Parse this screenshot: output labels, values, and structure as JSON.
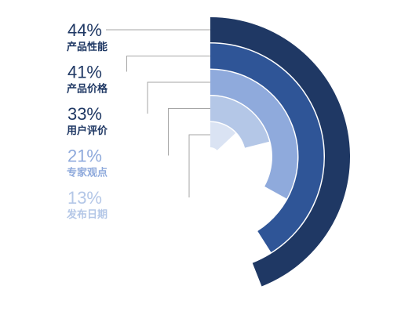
{
  "chart_data": {
    "type": "radial_bar",
    "categories": [
      "产品性能",
      "产品价格",
      "用户评价",
      "专家观点",
      "发布日期"
    ],
    "values": [
      44,
      41,
      33,
      21,
      13
    ],
    "value_labels": [
      "44%",
      "41%",
      "33%",
      "21%",
      "13%"
    ],
    "colors": [
      "#1f3864",
      "#2f5597",
      "#8faadc",
      "#b4c7e7",
      "#dae3f3"
    ],
    "label_colors": [
      "#1f3864",
      "#1f3864",
      "#1f3864",
      "#8faadc",
      "#b4c7e7"
    ]
  }
}
